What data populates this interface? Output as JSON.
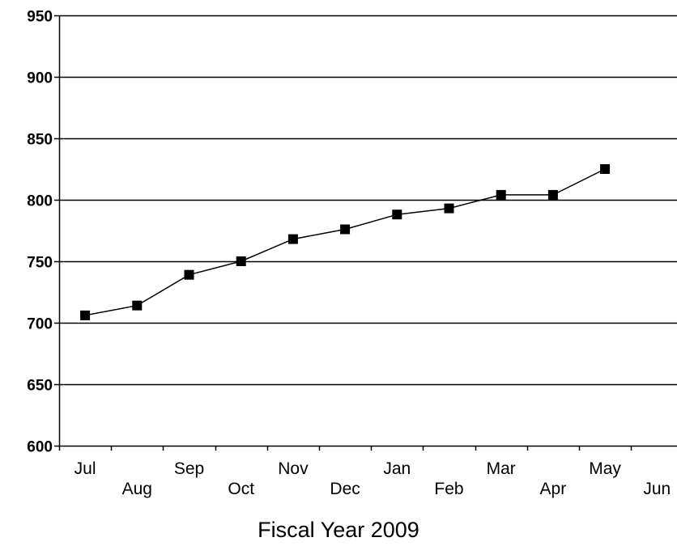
{
  "chart_data": {
    "type": "line",
    "title": "",
    "xlabel": "Fiscal Year 2009",
    "ylabel": "",
    "categories": [
      "Jul",
      "Aug",
      "Sep",
      "Oct",
      "Nov",
      "Dec",
      "Jan",
      "Feb",
      "Mar",
      "Apr",
      "May",
      "Jun"
    ],
    "series": [
      {
        "values": [
          706,
          714,
          739,
          750,
          768,
          776,
          788,
          793,
          804,
          804,
          825,
          null
        ],
        "marker": "square",
        "color": "#000000"
      }
    ],
    "ylim": [
      600,
      950
    ],
    "yticks": [
      600,
      650,
      700,
      750,
      800,
      850,
      900,
      950
    ],
    "grid": "horizontal",
    "legend": "none"
  }
}
